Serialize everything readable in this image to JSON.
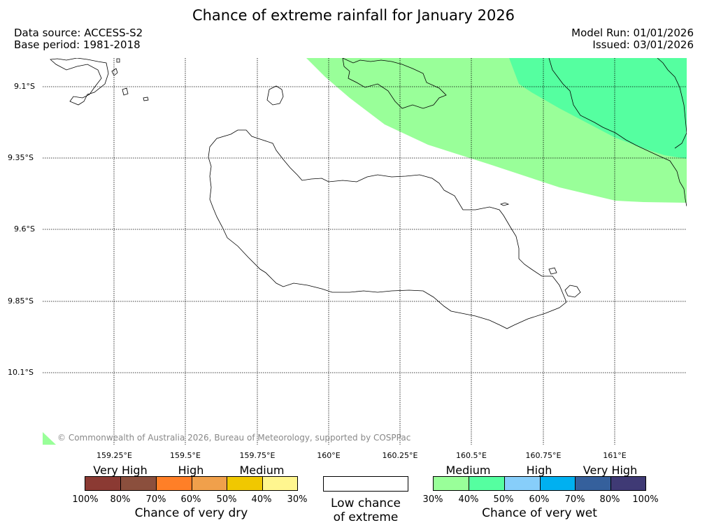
{
  "title": "Chance of extreme rainfall for January 2026",
  "header": {
    "data_source": "Data source: ACCESS-S2",
    "base_period": "Base period: 1981-2018",
    "model_run": "Model Run: 01/01/2026",
    "issued": "Issued: 03/01/2026"
  },
  "map": {
    "lat_ticks": [
      "9.1°S",
      "9.35°S",
      "9.6°S",
      "9.85°S",
      "10.1°S"
    ],
    "lon_ticks": [
      "159.25°E",
      "159.5°E",
      "159.75°E",
      "160°E",
      "160.25°E",
      "160.5°E",
      "160.75°E",
      "161°E"
    ],
    "copyright": "© Commonwealth of Australia 2026, Bureau of Meteorology, supported by COSPPac",
    "zones": [
      {
        "name": "Medium chance of very wet (30-40%)",
        "color": "#99ff99"
      },
      {
        "name": "Medium chance of very wet (40-50%)",
        "color": "#55ffa0"
      }
    ]
  },
  "legend": {
    "dry": {
      "categories": [
        "Very High",
        "High",
        "Medium"
      ],
      "colors": [
        "#8b3a33",
        "#8b4f3d",
        "#ff7f27",
        "#f0a04b",
        "#f0c800",
        "#fff68f"
      ],
      "percents": [
        "100%",
        "80%",
        "70%",
        "60%",
        "50%",
        "40%",
        "30%"
      ],
      "caption": "Chance of very dry"
    },
    "neutral": {
      "caption_line1": "Low chance",
      "caption_line2": "of extreme"
    },
    "wet": {
      "categories": [
        "Medium",
        "High",
        "Very High"
      ],
      "colors": [
        "#99ff99",
        "#55ffa0",
        "#87cefa",
        "#00b0f0",
        "#35609c",
        "#3f3a75"
      ],
      "percents": [
        "30%",
        "40%",
        "50%",
        "60%",
        "70%",
        "80%",
        "100%"
      ],
      "caption": "Chance of very wet"
    }
  }
}
